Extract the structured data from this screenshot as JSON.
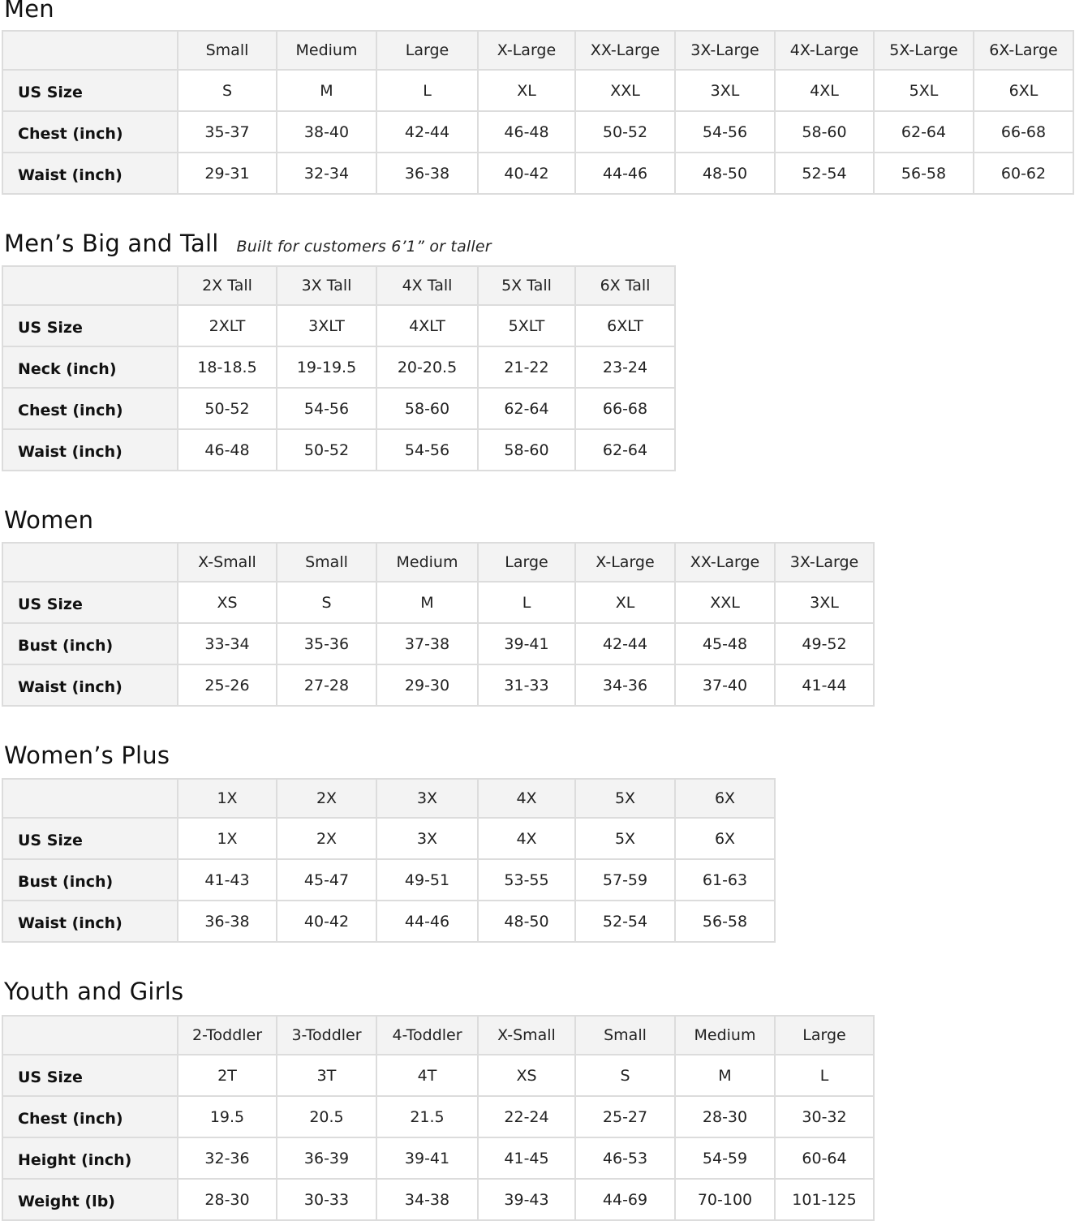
{
  "sections": [
    {
      "title": "Men",
      "subtitle": "",
      "columns": [
        "Small",
        "Medium",
        "Large",
        "X-Large",
        "XX-Large",
        "3X-Large",
        "4X-Large",
        "5X-Large",
        "6X-Large"
      ],
      "rows": [
        {
          "label": "US Size",
          "values": [
            "S",
            "M",
            "L",
            "XL",
            "XXL",
            "3XL",
            "4XL",
            "5XL",
            "6XL"
          ]
        },
        {
          "label": "Chest (inch)",
          "values": [
            "35-37",
            "38-40",
            "42-44",
            "46-48",
            "50-52",
            "54-56",
            "58-60",
            "62-64",
            "66-68"
          ]
        },
        {
          "label": "Waist (inch)",
          "values": [
            "29-31",
            "32-34",
            "36-38",
            "40-42",
            "44-46",
            "48-50",
            "52-54",
            "56-58",
            "60-62"
          ]
        }
      ]
    },
    {
      "title": "Men’s Big and Tall",
      "subtitle": "Built for customers 6’1” or taller",
      "columns": [
        "2X Tall",
        "3X Tall",
        "4X Tall",
        "5X Tall",
        "6X Tall"
      ],
      "rows": [
        {
          "label": "US Size",
          "values": [
            "2XLT",
            "3XLT",
            "4XLT",
            "5XLT",
            "6XLT"
          ]
        },
        {
          "label": "Neck (inch)",
          "values": [
            "18-18.5",
            "19-19.5",
            "20-20.5",
            "21-22",
            "23-24"
          ]
        },
        {
          "label": "Chest (inch)",
          "values": [
            "50-52",
            "54-56",
            "58-60",
            "62-64",
            "66-68"
          ]
        },
        {
          "label": "Waist (inch)",
          "values": [
            "46-48",
            "50-52",
            "54-56",
            "58-60",
            "62-64"
          ]
        }
      ]
    },
    {
      "title": "Women",
      "subtitle": "",
      "columns": [
        "X-Small",
        "Small",
        "Medium",
        "Large",
        "X-Large",
        "XX-Large",
        "3X-Large"
      ],
      "rows": [
        {
          "label": "US Size",
          "values": [
            "XS",
            "S",
            "M",
            "L",
            "XL",
            "XXL",
            "3XL"
          ]
        },
        {
          "label": "Bust (inch)",
          "values": [
            "33-34",
            "35-36",
            "37-38",
            "39-41",
            "42-44",
            "45-48",
            "49-52"
          ]
        },
        {
          "label": "Waist (inch)",
          "values": [
            "25-26",
            "27-28",
            "29-30",
            "31-33",
            "34-36",
            "37-40",
            "41-44"
          ]
        }
      ]
    },
    {
      "title": "Women’s  Plus",
      "subtitle": "",
      "columns": [
        "1X",
        "2X",
        "3X",
        "4X",
        "5X",
        "6X"
      ],
      "rows": [
        {
          "label": "US Size",
          "values": [
            "1X",
            "2X",
            "3X",
            "4X",
            "5X",
            "6X"
          ]
        },
        {
          "label": "Bust (inch)",
          "values": [
            "41-43",
            "45-47",
            "49-51",
            "53-55",
            "57-59",
            "61-63"
          ]
        },
        {
          "label": "Waist (inch)",
          "values": [
            "36-38",
            "40-42",
            "44-46",
            "48-50",
            "52-54",
            "56-58"
          ]
        }
      ]
    },
    {
      "title": "Youth and Girls",
      "subtitle": "",
      "columns": [
        "2-Toddler",
        "3-Toddler",
        "4-Toddler",
        "X-Small",
        "Small",
        "Medium",
        "Large"
      ],
      "rows": [
        {
          "label": "US Size",
          "values": [
            "2T",
            "3T",
            "4T",
            "XS",
            "S",
            "M",
            "L"
          ]
        },
        {
          "label": "Chest (inch)",
          "values": [
            "19.5",
            "20.5",
            "21.5",
            "22-24",
            "25-27",
            "28-30",
            "30-32"
          ]
        },
        {
          "label": "Height (inch)",
          "values": [
            "32-36",
            "36-39",
            "39-41",
            "41-45",
            "46-53",
            "54-59",
            "60-64"
          ]
        },
        {
          "label": "Weight (lb)",
          "values": [
            "28-30",
            "30-33",
            "34-38",
            "39-43",
            "44-69",
            "70-100",
            "101-125"
          ]
        }
      ]
    }
  ]
}
